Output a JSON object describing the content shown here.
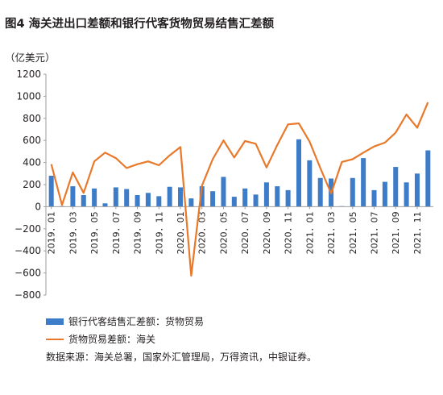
{
  "figure": {
    "title": "图4   海关进出口差额和银行代客货物贸易结售汇差额",
    "unit": "（亿美元）",
    "source": "数据来源：海关总署，国家外汇管理局，万得资讯，中银证券。"
  },
  "colors": {
    "bar": "#3d7cc9",
    "line": "#e8792a",
    "axis": "#9e9e9e",
    "text": "#231f20"
  },
  "chart_data": {
    "type": "bar+line",
    "ylim": [
      -800,
      1200
    ],
    "y_ticks": [
      -800,
      -600,
      -400,
      -200,
      0,
      200,
      400,
      600,
      800,
      1000,
      1200
    ],
    "y_tick_labels": [
      "−800",
      "−600",
      "−400",
      "−200",
      "0",
      "200",
      "400",
      "600",
      "800",
      "1000",
      "1200"
    ],
    "grid": false,
    "legend_position": "bottom-left",
    "x_tick_labels": [
      "2019．01",
      "2019．03",
      "2019．05",
      "2019．07",
      "2019．09",
      "2019．11",
      "2020．01",
      "2020．03",
      "2020．05",
      "2020．07",
      "2020．09",
      "2020．11",
      "2021．01",
      "2021．03",
      "2021．05",
      "2021．07",
      "2021．09",
      "2021．11"
    ],
    "categories": [
      "2019-01",
      "2019-02",
      "2019-03",
      "2019-04",
      "2019-05",
      "2019-06",
      "2019-07",
      "2019-08",
      "2019-09",
      "2019-10",
      "2019-11",
      "2019-12",
      "2020-01",
      "2020-02",
      "2020-03",
      "2020-04",
      "2020-05",
      "2020-06",
      "2020-07",
      "2020-08",
      "2020-09",
      "2020-10",
      "2020-11",
      "2020-12",
      "2021-01",
      "2021-02",
      "2021-03",
      "2021-04",
      "2021-05",
      "2021-06",
      "2021-07",
      "2021-08",
      "2021-09",
      "2021-10",
      "2021-11",
      "2021-12"
    ],
    "series": [
      {
        "name": "银行代客结售汇差额：货物贸易",
        "kind": "bar",
        "values": [
          280,
          5,
          185,
          105,
          165,
          30,
          175,
          160,
          105,
          125,
          95,
          180,
          175,
          75,
          185,
          140,
          270,
          90,
          165,
          110,
          220,
          185,
          150,
          610,
          420,
          260,
          255,
          5,
          260,
          440,
          150,
          225,
          360,
          220,
          300,
          510
        ]
      },
      {
        "name": "货物贸易差额：海关",
        "kind": "line",
        "values": [
          385,
          15,
          310,
          125,
          410,
          490,
          440,
          350,
          385,
          410,
          375,
          465,
          540,
          -625,
          190,
          430,
          600,
          445,
          595,
          570,
          355,
          560,
          745,
          755,
          590,
          350,
          120,
          405,
          430,
          490,
          545,
          580,
          670,
          835,
          715,
          945
        ]
      }
    ]
  },
  "legend": {
    "bar_label": "银行代客结售汇差额：货物贸易",
    "line_label": "货物贸易差额：海关"
  }
}
